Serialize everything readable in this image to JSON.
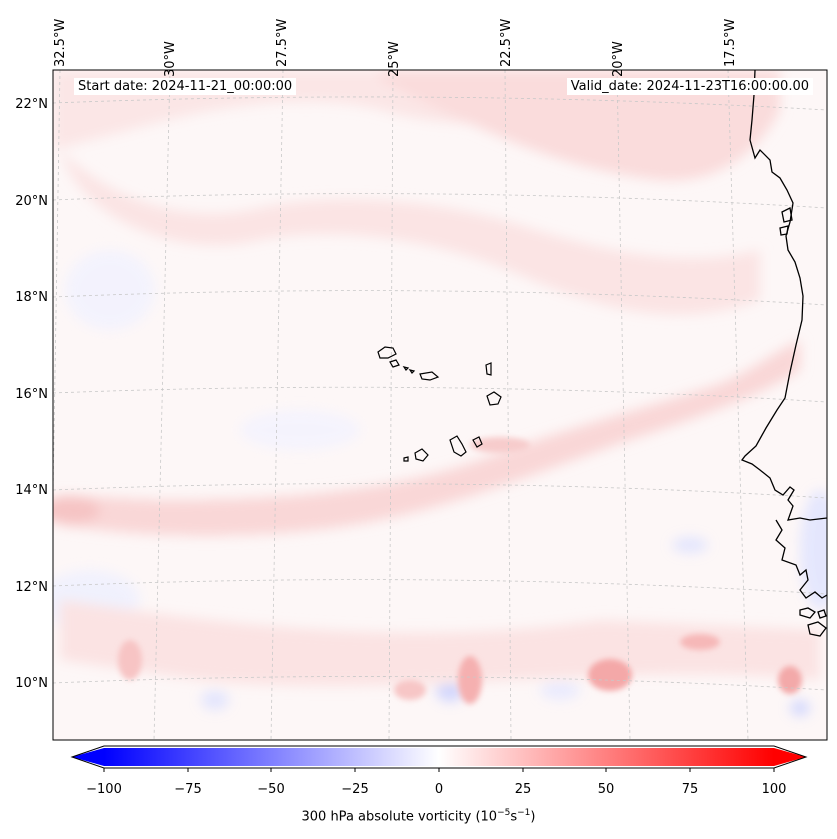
{
  "start_date": "Start date: 2024-11-21_00:00:00",
  "valid_date": "Valid_date: 2024-11-23T16:00:00.00",
  "lat_labels": [
    "22°N",
    "20°N",
    "18°N",
    "16°N",
    "14°N",
    "12°N",
    "10°N"
  ],
  "lon_labels": [
    "32.5°W",
    "30°W",
    "27.5°W",
    "25°W",
    "22.5°W",
    "20°W",
    "17.5°W"
  ],
  "colorbar": {
    "ticks": [
      "−100",
      "−75",
      "−50",
      "−25",
      "0",
      "25",
      "50",
      "75",
      "100"
    ],
    "label_main": "300 hPa absolute vorticity (10",
    "label_exp1": "−5",
    "label_mid": "s",
    "label_exp2": "−1",
    "label_end": ")",
    "min_color": "#0000ff",
    "mid_color": "#ffffff",
    "max_color": "#ff0000"
  },
  "colors": {
    "coast": "#000000",
    "grid": "#bbbbbb",
    "pink_band": "#fbe3e3",
    "blue_tint": "#eef0ff"
  }
}
